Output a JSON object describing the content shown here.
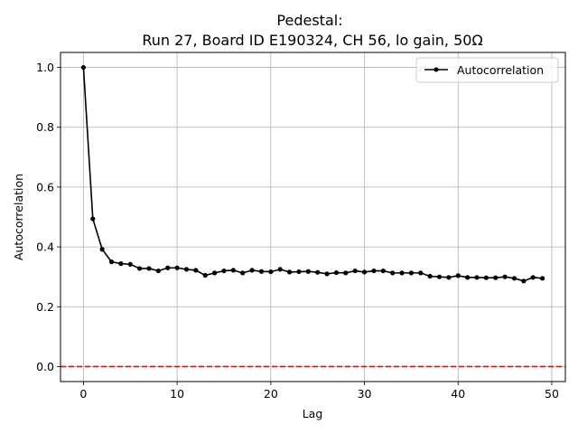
{
  "chart_data": {
    "type": "line",
    "title_line1": "Pedestal:",
    "title_line2": "Run 27, Board ID E190324, CH 56, lo gain, 50Ω",
    "xlabel": "Lag",
    "ylabel": "Autocorrelation",
    "xlim": [
      -2.45,
      51.45
    ],
    "ylim": [
      -0.05,
      1.05
    ],
    "xticks": [
      0,
      10,
      20,
      30,
      40,
      50
    ],
    "yticks": [
      0.0,
      0.2,
      0.4,
      0.6,
      0.8,
      1.0
    ],
    "xtick_labels": [
      "0",
      "10",
      "20",
      "30",
      "40",
      "50"
    ],
    "ytick_labels": [
      "0.0",
      "0.2",
      "0.4",
      "0.6",
      "0.8",
      "1.0"
    ],
    "grid": true,
    "legend_position": "top-right",
    "series": [
      {
        "name": "Autocorrelation",
        "color": "#000000",
        "marker": "circle",
        "x": [
          0,
          1,
          2,
          3,
          4,
          5,
          6,
          7,
          8,
          9,
          10,
          11,
          12,
          13,
          14,
          15,
          16,
          17,
          18,
          19,
          20,
          21,
          22,
          23,
          24,
          25,
          26,
          27,
          28,
          29,
          30,
          31,
          32,
          33,
          34,
          35,
          36,
          37,
          38,
          39,
          40,
          41,
          42,
          43,
          44,
          45,
          46,
          47,
          48,
          49
        ],
        "y": [
          1.0,
          0.494,
          0.392,
          0.35,
          0.344,
          0.342,
          0.328,
          0.328,
          0.32,
          0.33,
          0.33,
          0.325,
          0.322,
          0.305,
          0.313,
          0.32,
          0.322,
          0.313,
          0.322,
          0.318,
          0.317,
          0.325,
          0.316,
          0.317,
          0.318,
          0.315,
          0.31,
          0.314,
          0.313,
          0.32,
          0.316,
          0.32,
          0.32,
          0.313,
          0.313,
          0.313,
          0.313,
          0.302,
          0.3,
          0.298,
          0.304,
          0.298,
          0.298,
          0.297,
          0.297,
          0.3,
          0.295,
          0.286,
          0.298,
          0.295
        ]
      }
    ],
    "reference_line": {
      "y": 0.0,
      "color": "#ff0000",
      "style": "dashed"
    }
  }
}
